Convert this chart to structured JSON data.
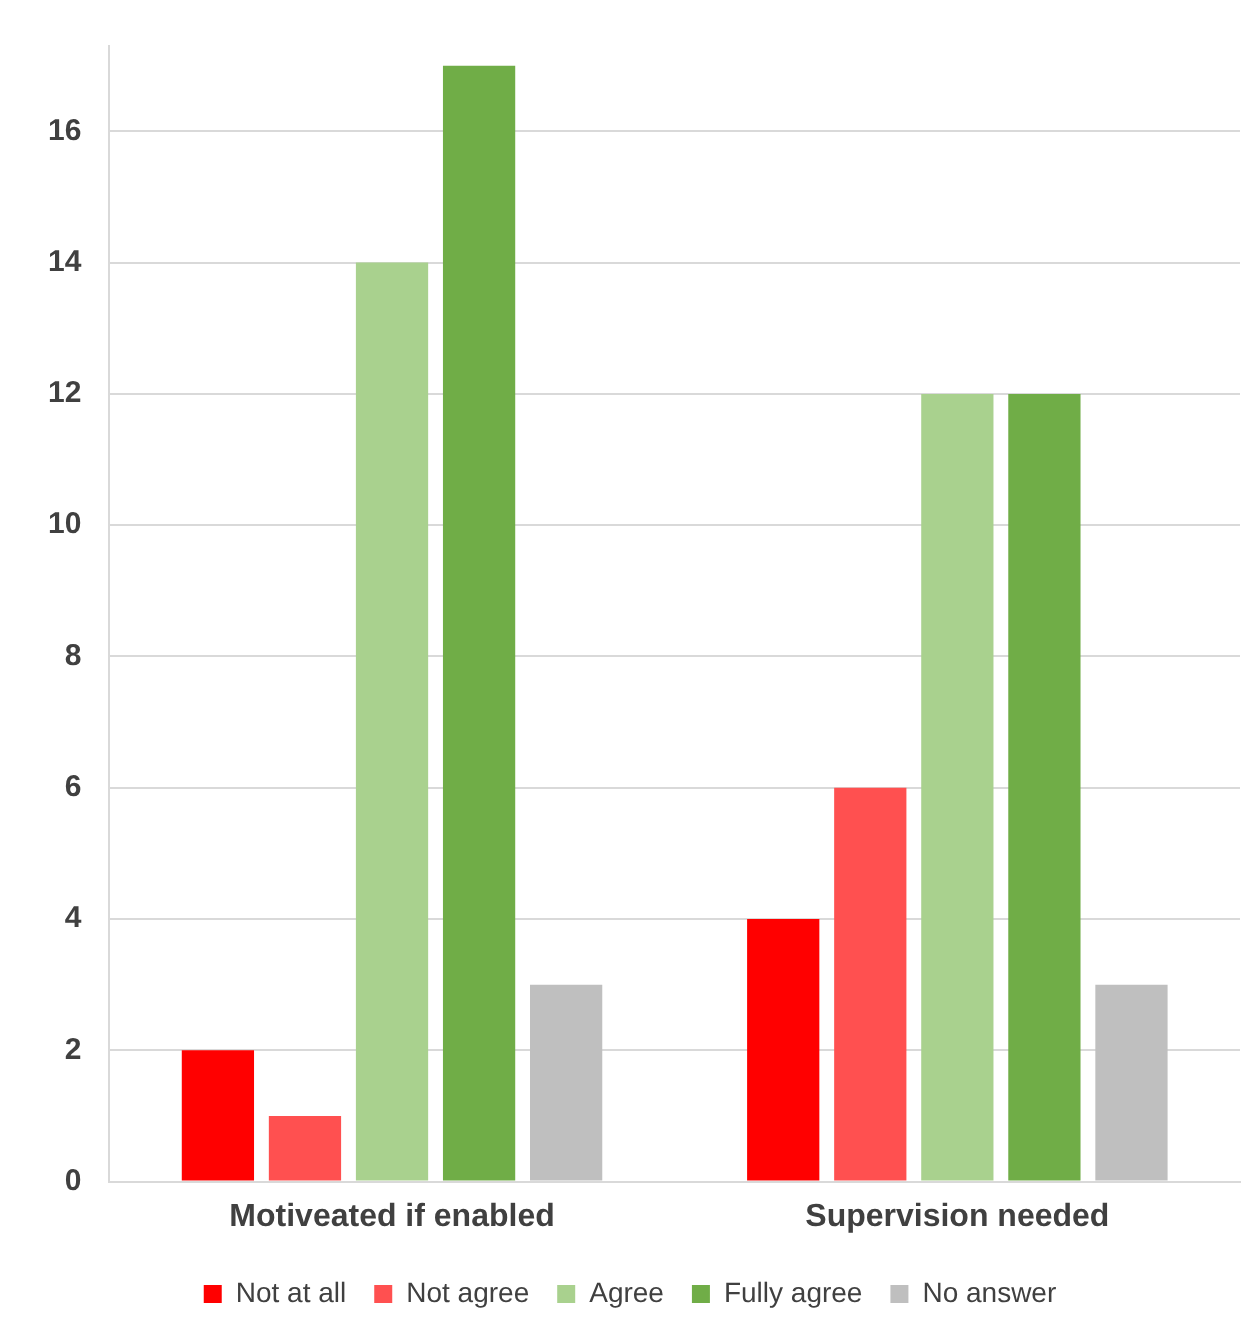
{
  "chart_data": {
    "type": "bar",
    "categories": [
      "Motiveated if enabled",
      "Supervision needed"
    ],
    "series": [
      {
        "name": "Not at all",
        "color": "#ff0000",
        "values": [
          2,
          4
        ]
      },
      {
        "name": "Not agree",
        "color": "#ff5050",
        "values": [
          1,
          6
        ]
      },
      {
        "name": "Agree",
        "color": "#a9d18e",
        "values": [
          14,
          12
        ]
      },
      {
        "name": "Fully agree",
        "color": "#70ad47",
        "values": [
          17,
          12
        ]
      },
      {
        "name": "No answer",
        "color": "#bfbfbf",
        "values": [
          3,
          3
        ]
      }
    ],
    "ylim": [
      0,
      17.3
    ],
    "yticks": [
      0,
      2,
      4,
      6,
      8,
      10,
      12,
      14,
      16
    ],
    "grid": "y",
    "legend": "bottom"
  }
}
